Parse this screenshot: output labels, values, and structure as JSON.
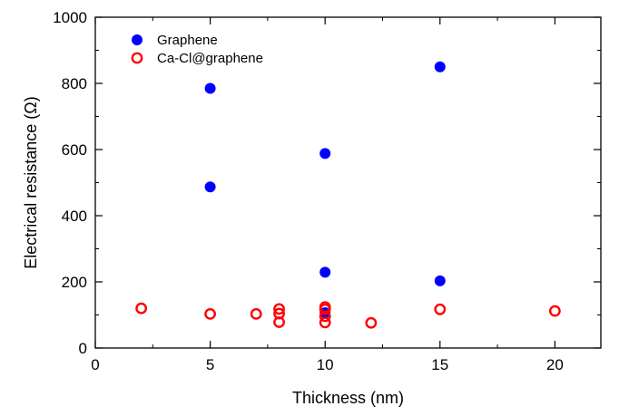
{
  "chart_data": {
    "type": "scatter",
    "title": "",
    "xlabel": "Thickness (nm)",
    "ylabel": "Electrical resistance (Ω)",
    "xlim": [
      0,
      22
    ],
    "ylim": [
      0,
      1000
    ],
    "x_ticks": [
      0,
      5,
      10,
      15,
      20
    ],
    "y_ticks": [
      0,
      200,
      400,
      600,
      800,
      1000
    ],
    "x_tick_labels": [
      "0",
      "5",
      "10",
      "15",
      "20"
    ],
    "y_tick_labels": [
      "0",
      "200",
      "400",
      "600",
      "800",
      "1000"
    ],
    "grid": false,
    "legend_position": "top-left",
    "series": [
      {
        "name": "Graphene",
        "marker": "filled-circle",
        "color": "#0000ff",
        "points": [
          {
            "x": 5,
            "y": 785
          },
          {
            "x": 5,
            "y": 487
          },
          {
            "x": 10,
            "y": 588
          },
          {
            "x": 10,
            "y": 229
          },
          {
            "x": 10,
            "y": 107
          },
          {
            "x": 15,
            "y": 850
          },
          {
            "x": 15,
            "y": 203
          }
        ]
      },
      {
        "name": "Ca-Cl@graphene",
        "marker": "open-circle",
        "color": "#ff0000",
        "points": [
          {
            "x": 2,
            "y": 120
          },
          {
            "x": 5,
            "y": 103
          },
          {
            "x": 7,
            "y": 103
          },
          {
            "x": 8,
            "y": 118
          },
          {
            "x": 8,
            "y": 104
          },
          {
            "x": 8,
            "y": 78
          },
          {
            "x": 10,
            "y": 124
          },
          {
            "x": 10,
            "y": 117
          },
          {
            "x": 10,
            "y": 96
          },
          {
            "x": 10,
            "y": 77
          },
          {
            "x": 12,
            "y": 76
          },
          {
            "x": 15,
            "y": 117
          },
          {
            "x": 20,
            "y": 112
          }
        ]
      }
    ]
  }
}
